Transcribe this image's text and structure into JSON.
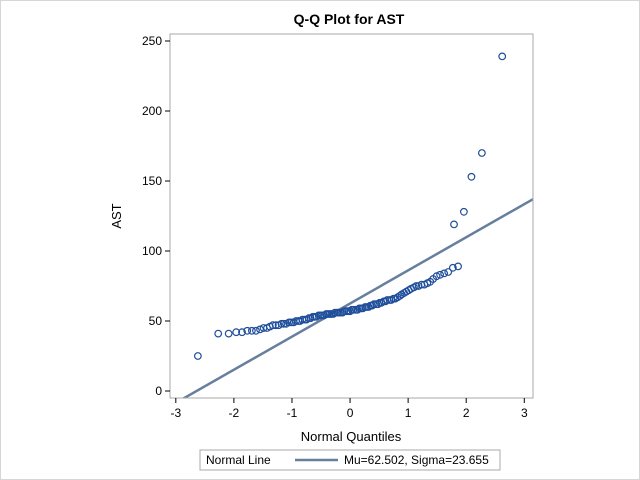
{
  "chart_data": {
    "type": "scatter",
    "title": "Q-Q Plot for AST",
    "xlabel": "Normal Quantiles",
    "ylabel": "AST",
    "xlim": [
      -3.1,
      3.15
    ],
    "ylim": [
      -5,
      255
    ],
    "x_ticks": [
      -3,
      -2,
      -1,
      0,
      1,
      2,
      3
    ],
    "y_ticks": [
      0,
      50,
      100,
      150,
      200,
      250
    ],
    "grid": false,
    "marker_color": "#1f4e9a",
    "line_color": "#667f9e",
    "series": [
      {
        "name": "AST",
        "points": [
          [
            -2.62,
            25
          ],
          [
            -2.27,
            41
          ],
          [
            -2.09,
            41
          ],
          [
            -1.96,
            42
          ],
          [
            -1.86,
            42
          ],
          [
            -1.77,
            43
          ],
          [
            -1.69,
            43
          ],
          [
            -1.62,
            43
          ],
          [
            -1.55,
            44
          ],
          [
            -1.49,
            45
          ],
          [
            -1.43,
            45
          ],
          [
            -1.38,
            46
          ],
          [
            -1.33,
            47
          ],
          [
            -1.28,
            47
          ],
          [
            -1.23,
            47
          ],
          [
            -1.18,
            48
          ],
          [
            -1.14,
            48
          ],
          [
            -1.1,
            48
          ],
          [
            -1.05,
            49
          ],
          [
            -1.01,
            49
          ],
          [
            -0.97,
            49
          ],
          [
            -0.93,
            50
          ],
          [
            -0.89,
            50
          ],
          [
            -0.86,
            50
          ],
          [
            -0.82,
            51
          ],
          [
            -0.78,
            51
          ],
          [
            -0.75,
            51
          ],
          [
            -0.71,
            52
          ],
          [
            -0.68,
            52
          ],
          [
            -0.64,
            53
          ],
          [
            -0.61,
            53
          ],
          [
            -0.58,
            53
          ],
          [
            -0.54,
            54
          ],
          [
            -0.51,
            54
          ],
          [
            -0.48,
            54
          ],
          [
            -0.45,
            54
          ],
          [
            -0.41,
            55
          ],
          [
            -0.38,
            55
          ],
          [
            -0.35,
            55
          ],
          [
            -0.32,
            55
          ],
          [
            -0.29,
            55
          ],
          [
            -0.26,
            56
          ],
          [
            -0.22,
            56
          ],
          [
            -0.19,
            56
          ],
          [
            -0.16,
            56
          ],
          [
            -0.13,
            56
          ],
          [
            -0.1,
            57
          ],
          [
            -0.06,
            57
          ],
          [
            -0.03,
            57
          ],
          [
            0.0,
            57
          ],
          [
            0.03,
            58
          ],
          [
            0.06,
            58
          ],
          [
            0.1,
            58
          ],
          [
            0.13,
            58
          ],
          [
            0.16,
            59
          ],
          [
            0.19,
            59
          ],
          [
            0.22,
            59
          ],
          [
            0.26,
            60
          ],
          [
            0.29,
            60
          ],
          [
            0.32,
            60
          ],
          [
            0.35,
            61
          ],
          [
            0.38,
            61
          ],
          [
            0.41,
            62
          ],
          [
            0.45,
            62
          ],
          [
            0.48,
            62
          ],
          [
            0.51,
            63
          ],
          [
            0.54,
            63
          ],
          [
            0.58,
            64
          ],
          [
            0.61,
            64
          ],
          [
            0.64,
            65
          ],
          [
            0.68,
            65
          ],
          [
            0.71,
            65
          ],
          [
            0.75,
            66
          ],
          [
            0.78,
            66
          ],
          [
            0.82,
            67
          ],
          [
            0.86,
            68
          ],
          [
            0.89,
            69
          ],
          [
            0.93,
            70
          ],
          [
            0.97,
            71
          ],
          [
            1.01,
            72
          ],
          [
            1.05,
            73
          ],
          [
            1.1,
            74
          ],
          [
            1.14,
            75
          ],
          [
            1.18,
            75
          ],
          [
            1.23,
            76
          ],
          [
            1.28,
            76
          ],
          [
            1.33,
            77
          ],
          [
            1.38,
            78
          ],
          [
            1.43,
            80
          ],
          [
            1.49,
            82
          ],
          [
            1.55,
            83
          ],
          [
            1.62,
            84
          ],
          [
            1.69,
            85
          ],
          [
            1.77,
            88
          ],
          [
            1.86,
            89
          ],
          [
            1.79,
            119
          ],
          [
            1.96,
            128
          ],
          [
            2.09,
            153
          ],
          [
            2.27,
            170
          ],
          [
            2.62,
            239
          ]
        ]
      }
    ],
    "reference_line": {
      "name": "Normal Line",
      "mu": 62.502,
      "sigma": 23.655
    },
    "legend": {
      "position": "bottom",
      "label": "Normal Line",
      "text": "Mu=62.502, Sigma=23.655"
    }
  }
}
